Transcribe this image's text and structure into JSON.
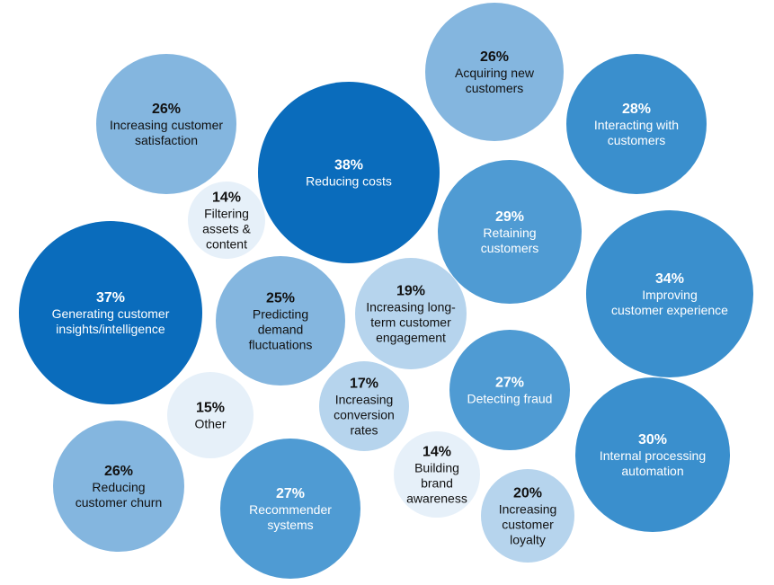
{
  "chart_data": {
    "type": "bubble",
    "title": "",
    "xlabel": "",
    "ylabel": "",
    "legend": "none",
    "grid": false,
    "shades": {
      "darkest": "#0a6cbc",
      "dark": "#3a8fcd",
      "medium": "#4f9bd3",
      "light": "#84b6df",
      "lighter": "#b6d4ed",
      "lightest": "#e6f0f9"
    },
    "items": [
      {
        "value": 38,
        "label_lines": [
          "Reducing costs"
        ],
        "shade": "darkest"
      },
      {
        "value": 37,
        "label_lines": [
          "Generating customer",
          "insights/intelligence"
        ],
        "shade": "darkest"
      },
      {
        "value": 34,
        "label_lines": [
          "Improving",
          "customer experience"
        ],
        "shade": "dark"
      },
      {
        "value": 30,
        "label_lines": [
          "Internal processing",
          "automation"
        ],
        "shade": "dark"
      },
      {
        "value": 29,
        "label_lines": [
          "Retaining",
          "customers"
        ],
        "shade": "medium"
      },
      {
        "value": 28,
        "label_lines": [
          "Interacting with",
          "customers"
        ],
        "shade": "dark"
      },
      {
        "value": 27,
        "label_lines": [
          "Detecting fraud"
        ],
        "shade": "medium"
      },
      {
        "value": 27,
        "label_lines": [
          "Recommender",
          "systems"
        ],
        "shade": "medium"
      },
      {
        "value": 26,
        "label_lines": [
          "Increasing customer",
          "satisfaction"
        ],
        "shade": "light"
      },
      {
        "value": 26,
        "label_lines": [
          "Acquiring new",
          "customers"
        ],
        "shade": "light"
      },
      {
        "value": 26,
        "label_lines": [
          "Reducing",
          "customer churn"
        ],
        "shade": "light"
      },
      {
        "value": 25,
        "label_lines": [
          "Predicting",
          "demand",
          "fluctuations"
        ],
        "shade": "light"
      },
      {
        "value": 20,
        "label_lines": [
          "Increasing",
          "customer",
          "loyalty"
        ],
        "shade": "lighter"
      },
      {
        "value": 19,
        "label_lines": [
          "Increasing long-",
          "term customer",
          "engagement"
        ],
        "shade": "lighter"
      },
      {
        "value": 17,
        "label_lines": [
          "Increasing",
          "conversion",
          "rates"
        ],
        "shade": "lighter"
      },
      {
        "value": 15,
        "label_lines": [
          "Other"
        ],
        "shade": "lightest"
      },
      {
        "value": 14,
        "label_lines": [
          "Filtering",
          "assets &",
          "content"
        ],
        "shade": "lightest"
      },
      {
        "value": 14,
        "label_lines": [
          "Building",
          "brand",
          "awareness"
        ],
        "shade": "lightest"
      }
    ]
  }
}
